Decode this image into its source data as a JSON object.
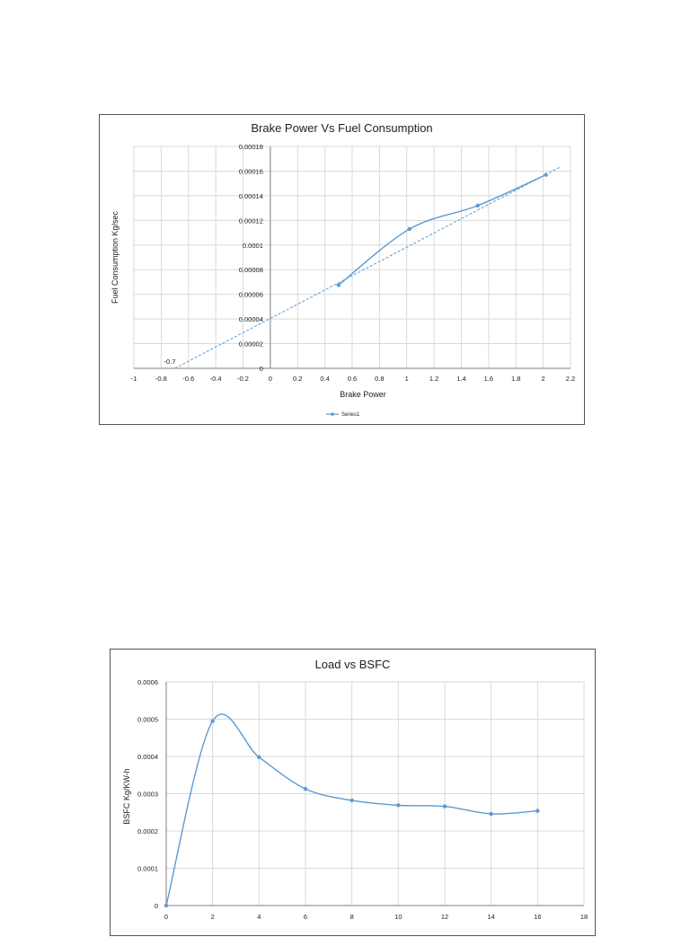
{
  "chart_data": [
    {
      "type": "scatter",
      "title": "Brake Power Vs  Fuel Consumption",
      "xlabel": "Brake Power",
      "ylabel": "Fuel Consumption  Kg/sec",
      "xlim": [
        -1,
        2.2
      ],
      "ylim": [
        0,
        0.00018
      ],
      "x_ticks": [
        "-1",
        "-0.8",
        "-0.6",
        "-0.4",
        "-0.2",
        "0",
        "0.2",
        "0.4",
        "0.6",
        "0.8",
        "1",
        "1.2",
        "1.4",
        "1.6",
        "1.8",
        "2",
        "2.2"
      ],
      "y_ticks": [
        "0",
        "0.00002",
        "0.00004",
        "0.00006",
        "0.00008",
        "0.0001",
        "0.00012",
        "0.00014",
        "0.00016",
        "0.00018"
      ],
      "grid": true,
      "legend_position": "bottom",
      "series": [
        {
          "name": "Series1",
          "x": [
            0.5,
            1.02,
            1.52,
            2.02
          ],
          "y": [
            6.75e-05,
            0.000113,
            0.000132,
            0.000157
          ],
          "smooth": true
        }
      ],
      "trendline": {
        "type": "linear",
        "from": [
          -0.7,
          0
        ],
        "to": [
          2.12,
          0.000163
        ],
        "label": "-0.7"
      }
    },
    {
      "type": "line",
      "title": "Load vs BSFC",
      "xlabel": "",
      "ylabel": "BSFC Kg/KW-h",
      "xlim": [
        0,
        18
      ],
      "ylim": [
        0,
        0.0006
      ],
      "x_ticks": [
        "0",
        "2",
        "4",
        "6",
        "8",
        "10",
        "12",
        "14",
        "16",
        "18"
      ],
      "y_ticks": [
        "0",
        "0.0001",
        "0.0002",
        "0.0003",
        "0.0004",
        "0.0005",
        "0.0006"
      ],
      "grid": true,
      "series": [
        {
          "x": [
            0,
            2,
            4,
            6,
            8,
            10,
            12,
            14,
            16
          ],
          "y": [
            0,
            0.000495,
            0.000398,
            0.000313,
            0.000282,
            0.000269,
            0.000266,
            0.000246,
            0.000254
          ],
          "smooth": true
        }
      ]
    }
  ]
}
